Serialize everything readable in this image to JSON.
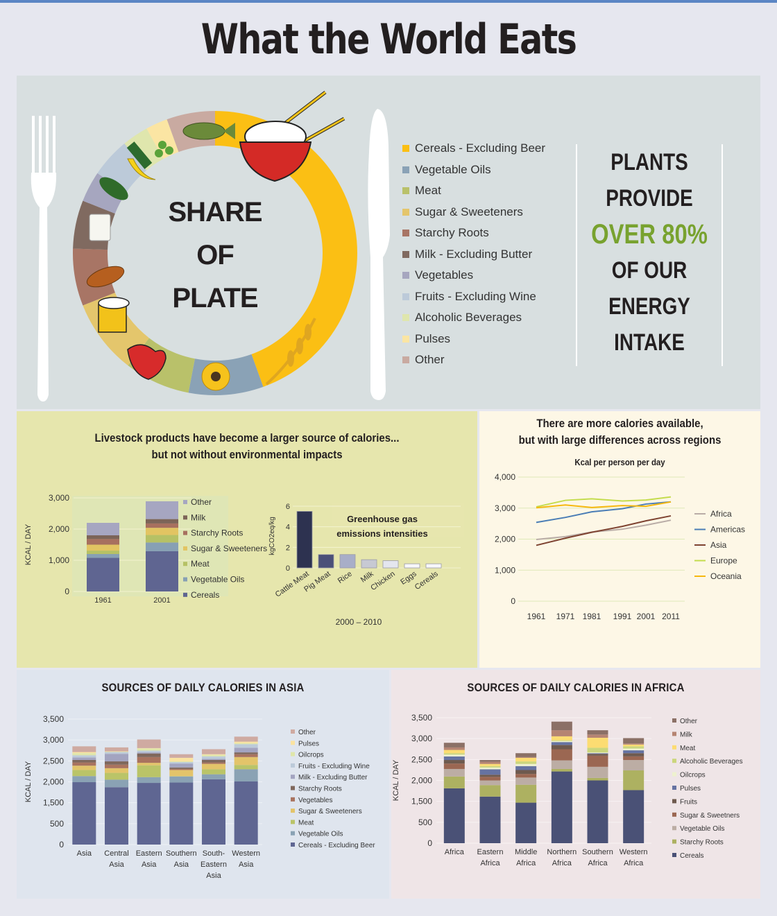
{
  "title": "What the World Eats",
  "plate": {
    "center_lines": [
      "SHARE",
      "OF",
      "PLATE"
    ],
    "legend": [
      {
        "label": "Cereals - Excluding Beer",
        "color": "#fbbf14"
      },
      {
        "label": "Vegetable Oils",
        "color": "#8aa2b6"
      },
      {
        "label": "Meat",
        "color": "#b9c16a"
      },
      {
        "label": "Sugar & Sweeteners",
        "color": "#e4c66c"
      },
      {
        "label": "Starchy Roots",
        "color": "#a87565"
      },
      {
        "label": "Milk - Excluding Butter",
        "color": "#806a60"
      },
      {
        "label": "Vegetables",
        "color": "#a6a6bf"
      },
      {
        "label": "Fruits - Excluding Wine",
        "color": "#bccad9"
      },
      {
        "label": "Alcoholic Beverages",
        "color": "#dfe6ad"
      },
      {
        "label": "Pulses",
        "color": "#fbe5a3"
      },
      {
        "label": "Other",
        "color": "#c9aaa1"
      }
    ],
    "callout": {
      "line1": "PLANTS",
      "line2": "PROVIDE",
      "highlight": "OVER 80%",
      "line4": "OF OUR",
      "line5": "ENERGY",
      "line6": "INTAKE",
      "highlight_color": "#78a22f"
    }
  },
  "livestock": {
    "title_line1": "Livestock products have become a larger source of calories...",
    "title_line2": "but not without environmental impacts"
  },
  "lines_panel": {
    "title_line1": "There are more calories available,",
    "title_line2": "but with large differences across regions",
    "subtitle": "Kcal per person per day"
  },
  "asia": {
    "title": "SOURCES OF DAILY CALORIES IN ASIA"
  },
  "africa": {
    "title": "SOURCES OF DAILY CALORIES IN AFRICA"
  },
  "chart_data": [
    {
      "id": "share_of_plate",
      "type": "pie",
      "title": "SHARE OF PLATE",
      "categories": [
        "Cereals - Excluding Beer",
        "Vegetable Oils",
        "Meat",
        "Sugar & Sweeteners",
        "Starchy Roots",
        "Milk - Excluding Butter",
        "Vegetables",
        "Fruits - Excluding Wine",
        "Alcoholic Beverages",
        "Pulses",
        "Other"
      ],
      "values": [
        44.5,
        8.5,
        7.5,
        8.5,
        6.5,
        5.5,
        3.5,
        4.5,
        3,
        2.5,
        5.5
      ],
      "colors": [
        "#fbbf14",
        "#8aa2b6",
        "#b9c16a",
        "#e4c66c",
        "#a87565",
        "#806a60",
        "#a6a6bf",
        "#bccad9",
        "#dfe6ad",
        "#fbe5a3",
        "#c9aaa1"
      ]
    },
    {
      "id": "livestock_kcal",
      "type": "bar",
      "stacked": true,
      "title": "",
      "categories": [
        "1961",
        "2001"
      ],
      "ylabel": "KCAL / DAY",
      "ylim": [
        0,
        3000
      ],
      "yticks": [
        "0",
        "1,000",
        "2,000",
        "3,000"
      ],
      "series": [
        {
          "name": "Cereals",
          "color": "#5f6591",
          "values": [
            1080,
            1290
          ]
        },
        {
          "name": "Vegetable Oils",
          "color": "#87a0b4",
          "values": [
            120,
            280
          ]
        },
        {
          "name": "Meat",
          "color": "#b6c165",
          "values": [
            110,
            240
          ]
        },
        {
          "name": "Sugar & Sweeteners",
          "color": "#e2c462",
          "values": [
            190,
            230
          ]
        },
        {
          "name": "Starchy Roots",
          "color": "#a7705f",
          "values": [
            180,
            140
          ]
        },
        {
          "name": "Milk",
          "color": "#7c6458",
          "values": [
            120,
            140
          ]
        },
        {
          "name": "Other",
          "color": "#a6a6c1",
          "values": [
            400,
            570
          ]
        }
      ],
      "legend_order": [
        "Other",
        "Milk",
        "Starchy Roots",
        "Sugar & Sweeteners",
        "Meat",
        "Vegetable Oils",
        "Cereals"
      ]
    },
    {
      "id": "ghg",
      "type": "bar",
      "title": "Greenhouse gas emissions intensities",
      "categories": [
        "Cattle Meat",
        "Pig Meat",
        "Rice",
        "Milk",
        "Chicken",
        "Eggs",
        "Cereals"
      ],
      "values": [
        5.5,
        1.3,
        1.3,
        0.8,
        0.7,
        0.4,
        0.4
      ],
      "colors": [
        "#2d3250",
        "#4b5078",
        "#a8aec8",
        "#c7c9d3",
        "#e4e6ef",
        "#f7f7fa",
        "#f7f7fa"
      ],
      "ylabel": "kgCO2eq/kg",
      "xlabel": "2000 – 2010",
      "ylim": [
        0,
        6
      ],
      "yticks": [
        "0",
        "2",
        "4",
        "6"
      ]
    },
    {
      "id": "regional_kcal",
      "type": "line",
      "title": "Kcal per person per day",
      "x": [
        "1961",
        "1971",
        "1981",
        "1991",
        "2001",
        "2011"
      ],
      "ylim": [
        0,
        4000
      ],
      "yticks": [
        "0",
        "1,000",
        "2,000",
        "3,000",
        "4,000"
      ],
      "series": [
        {
          "name": "Africa",
          "color": "#b9aca6",
          "values": [
            1990,
            2080,
            2230,
            2320,
            2450,
            2610
          ]
        },
        {
          "name": "Americas",
          "color": "#4a7db5",
          "values": [
            2540,
            2700,
            2880,
            2980,
            3130,
            3200
          ]
        },
        {
          "name": "Asia",
          "color": "#7e4331",
          "values": [
            1800,
            2030,
            2220,
            2410,
            2590,
            2750
          ]
        },
        {
          "name": "Europe",
          "color": "#c4dc4d",
          "values": [
            3040,
            3250,
            3300,
            3230,
            3260,
            3360
          ]
        },
        {
          "name": "Oceania",
          "color": "#f6b80f",
          "values": [
            3010,
            3100,
            3020,
            3080,
            3060,
            3200
          ]
        }
      ],
      "legend_position": "right"
    },
    {
      "id": "asia_sources",
      "type": "bar",
      "stacked": true,
      "title": "SOURCES OF DAILY CALORIES IN ASIA",
      "ylabel": "KCAL / DAY",
      "yticks": [
        "0",
        "500",
        "1,500",
        "2,000",
        "2,500",
        "3,000",
        "3,500"
      ],
      "categories": [
        "Asia",
        "Central Asia",
        "Eastern Asia",
        "Southern Asia",
        "South-Eastern Asia",
        "Western Asia"
      ],
      "series": [
        {
          "name": "Cereals - Excluding Beer",
          "color": "#5f6692",
          "values": [
            1740,
            1600,
            1720,
            1730,
            1820,
            1760
          ]
        },
        {
          "name": "Vegetable Oils",
          "color": "#8aa2b4",
          "values": [
            170,
            210,
            160,
            170,
            140,
            340
          ]
        },
        {
          "name": "Meat",
          "color": "#bac468",
          "values": [
            170,
            190,
            330,
            10,
            140,
            120
          ]
        },
        {
          "name": "Sugar & Sweeteners",
          "color": "#e3c46a",
          "values": [
            120,
            130,
            70,
            170,
            150,
            220
          ]
        },
        {
          "name": "Vegetables",
          "color": "#a9735f",
          "values": [
            90,
            100,
            160,
            30,
            40,
            80
          ]
        },
        {
          "name": "Starchy Roots",
          "color": "#7f685c",
          "values": [
            70,
            90,
            100,
            40,
            70,
            50
          ]
        },
        {
          "name": "Milk - Excluding Butter",
          "color": "#a3a4c0",
          "values": [
            70,
            210,
            30,
            110,
            30,
            130
          ]
        },
        {
          "name": "Fruits - Excluding Wine",
          "color": "#bccad9",
          "values": [
            60,
            50,
            50,
            40,
            70,
            100
          ]
        },
        {
          "name": "Oilcrops",
          "color": "#dfe6aa",
          "values": [
            60,
            10,
            60,
            20,
            40,
            30
          ]
        },
        {
          "name": "Pulses",
          "color": "#fbe3a0",
          "values": [
            30,
            10,
            10,
            100,
            20,
            40
          ]
        },
        {
          "name": "Other",
          "color": "#cfaaa1",
          "values": [
            160,
            110,
            240,
            100,
            140,
            140
          ]
        }
      ],
      "legend_order": [
        "Other",
        "Pulses",
        "Oilcrops",
        "Fruits - Excluding Wine",
        "Milk - Excluding Butter",
        "Starchy Roots",
        "Vegetables",
        "Sugar & Sweeteners",
        "Meat",
        "Vegetable Oils",
        "Cereals - Excluding Beer"
      ]
    },
    {
      "id": "africa_sources",
      "type": "bar",
      "stacked": true,
      "title": "SOURCES OF DAILY CALORIES IN AFRICA",
      "ylabel": "KCAL / DAY",
      "yticks": [
        "0",
        "500",
        "1,500",
        "2,000",
        "2,500",
        "3,000",
        "3,500"
      ],
      "categories": [
        "Africa",
        "Eastern Africa",
        "Middle Africa",
        "Northern Africa",
        "Southern Africa",
        "Western Africa"
      ],
      "series": [
        {
          "name": "Cereals",
          "color": "#4a5176",
          "values": [
            1530,
            1300,
            1130,
            2000,
            1750,
            1480
          ]
        },
        {
          "name": "Starchy Roots",
          "color": "#adb161",
          "values": [
            330,
            320,
            500,
            70,
            70,
            550
          ]
        },
        {
          "name": "Vegetable Oils",
          "color": "#bcada4",
          "values": [
            210,
            130,
            200,
            240,
            310,
            290
          ]
        },
        {
          "name": "Sugar & Sweetners",
          "color": "#9b6752",
          "values": [
            150,
            100,
            100,
            310,
            310,
            100
          ]
        },
        {
          "name": "Fruits",
          "color": "#6e5a4e",
          "values": [
            100,
            60,
            110,
            120,
            50,
            90
          ]
        },
        {
          "name": "Pulses",
          "color": "#6673a2",
          "values": [
            100,
            150,
            110,
            80,
            20,
            80
          ]
        },
        {
          "name": "Oilcrops",
          "color": "#eef1cf",
          "values": [
            50,
            50,
            60,
            30,
            20,
            50
          ]
        },
        {
          "name": "Alcoholic Beverages",
          "color": "#cbd67c",
          "values": [
            40,
            40,
            70,
            20,
            130,
            60
          ]
        },
        {
          "name": "Meat",
          "color": "#fcdc72",
          "values": [
            90,
            60,
            100,
            110,
            280,
            50
          ]
        },
        {
          "name": "Milk",
          "color": "#b58472",
          "values": [
            70,
            60,
            20,
            170,
            90,
            30
          ]
        },
        {
          "name": "Other",
          "color": "#8b7066",
          "values": [
            130,
            50,
            110,
            240,
            120,
            150
          ]
        }
      ],
      "legend_order": [
        "Other",
        "Milk",
        "Meat",
        "Alcoholic Beverages",
        "Oilcrops",
        "Pulses",
        "Fruits",
        "Sugar & Sweetners",
        "Vegetable Oils",
        "Starchy Roots",
        "Cereals"
      ]
    }
  ]
}
